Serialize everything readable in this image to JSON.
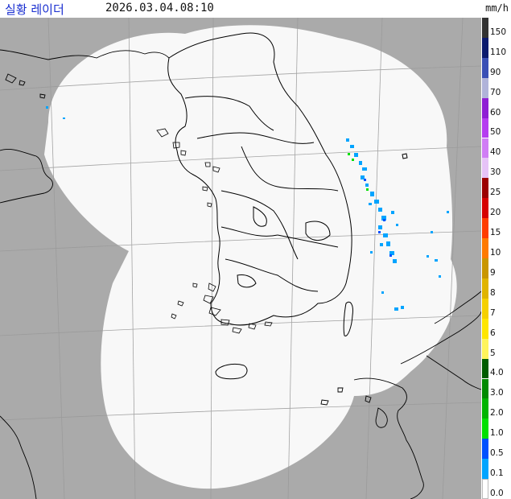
{
  "header": {
    "title": "실황 레이더",
    "timestamp": "2026.03.04.08:10",
    "unit": "mm/h"
  },
  "legend": {
    "items": [
      {
        "label": "150",
        "color": "#333333"
      },
      {
        "label": "110",
        "color": "#0b1a6e"
      },
      {
        "label": "90",
        "color": "#3a4fb5"
      },
      {
        "label": "70",
        "color": "#b0b3d9"
      },
      {
        "label": "60",
        "color": "#8f1fd4"
      },
      {
        "label": "50",
        "color": "#b53cf0"
      },
      {
        "label": "40",
        "color": "#d07df5"
      },
      {
        "label": "30",
        "color": "#e6c3f7"
      },
      {
        "label": "25",
        "color": "#9b0000"
      },
      {
        "label": "20",
        "color": "#d60000"
      },
      {
        "label": "15",
        "color": "#ff3c00"
      },
      {
        "label": "10",
        "color": "#ff7a00"
      },
      {
        "label": "9",
        "color": "#c99600"
      },
      {
        "label": "8",
        "color": "#e0b400"
      },
      {
        "label": "7",
        "color": "#f5d000"
      },
      {
        "label": "6",
        "color": "#ffe600"
      },
      {
        "label": "5",
        "color": "#fff45c"
      },
      {
        "label": "4.0",
        "color": "#005c00"
      },
      {
        "label": "3.0",
        "color": "#008a00"
      },
      {
        "label": "2.0",
        "color": "#00b400"
      },
      {
        "label": "1.0",
        "color": "#00e000"
      },
      {
        "label": "0.5",
        "color": "#0050ff"
      },
      {
        "label": "0.1",
        "color": "#00a4ff"
      },
      {
        "label": "0.0",
        "color": "#ffffff"
      }
    ]
  },
  "colors": {
    "outside_coverage": "#aaaaaa",
    "coverage": "#f8f8f8",
    "grid": "#9a9a9a",
    "coast": "#000000"
  }
}
